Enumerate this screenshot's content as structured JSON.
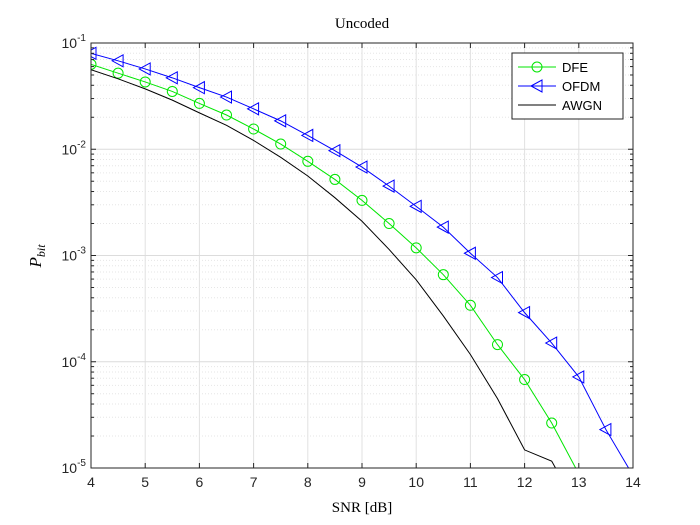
{
  "chart_data": {
    "type": "line",
    "title": "Uncoded",
    "xlabel": "SNR [dB]",
    "ylabel": {
      "base": "P",
      "subscript": "bit"
    },
    "xlim": [
      4,
      14
    ],
    "ylim": [
      1e-05,
      0.1
    ],
    "yscale": "log",
    "grid": true,
    "minor_grid": true,
    "legend_position": "top-right",
    "x_ticks": [
      4,
      5,
      6,
      7,
      8,
      9,
      10,
      11,
      12,
      13,
      14
    ],
    "x_tick_labels": [
      "4",
      "5",
      "6",
      "7",
      "8",
      "9",
      "10",
      "11",
      "12",
      "13",
      "14"
    ],
    "y_ticks": [
      {
        "value": 1e-05,
        "base": "10",
        "exp": "-5"
      },
      {
        "value": 0.0001,
        "base": "10",
        "exp": "-4"
      },
      {
        "value": 0.001,
        "base": "10",
        "exp": "-3"
      },
      {
        "value": 0.01,
        "base": "10",
        "exp": "-2"
      },
      {
        "value": 0.1,
        "base": "10",
        "exp": "-1"
      }
    ],
    "series": [
      {
        "name": "DFE",
        "color": "#00e600",
        "marker": "circle",
        "x": [
          4,
          4.5,
          5,
          5.5,
          6,
          6.5,
          7,
          7.5,
          8,
          8.5,
          9,
          9.5,
          10,
          10.5,
          11,
          11.5,
          12,
          12.5,
          13
        ],
        "y": [
          0.063,
          0.052,
          0.043,
          0.035,
          0.027,
          0.021,
          0.0155,
          0.0112,
          0.0077,
          0.0052,
          0.0033,
          0.002,
          0.00118,
          0.00066,
          0.00034,
          0.000145,
          6.8e-05,
          2.65e-05,
          8.8e-06
        ]
      },
      {
        "name": "OFDM",
        "color": "#0000ff",
        "marker": "triangle-left",
        "x": [
          4,
          4.5,
          5,
          5.5,
          6,
          6.5,
          7,
          7.5,
          8,
          8.5,
          9,
          9.5,
          10,
          10.5,
          11,
          11.5,
          12,
          12.5,
          13,
          13.5,
          14
        ],
        "y": [
          0.08,
          0.068,
          0.057,
          0.047,
          0.038,
          0.031,
          0.024,
          0.0185,
          0.0135,
          0.0097,
          0.0068,
          0.0045,
          0.0029,
          0.00185,
          0.00105,
          0.00062,
          0.00029,
          0.00015,
          7.2e-05,
          2.3e-05,
          8.5e-06
        ]
      },
      {
        "name": "AWGN",
        "color": "#000000",
        "marker": "none",
        "x": [
          4,
          4.5,
          5,
          5.5,
          6,
          6.5,
          7,
          7.5,
          8,
          8.5,
          9,
          9.5,
          10,
          10.5,
          11,
          11.5,
          12,
          12.5,
          12.6
        ],
        "y": [
          0.056,
          0.046,
          0.037,
          0.029,
          0.022,
          0.0168,
          0.0121,
          0.0084,
          0.0056,
          0.0035,
          0.0021,
          0.00114,
          0.00059,
          0.00027,
          0.000117,
          4.5e-05,
          1.48e-05,
          1.16e-05,
          9.4e-06
        ]
      }
    ]
  }
}
